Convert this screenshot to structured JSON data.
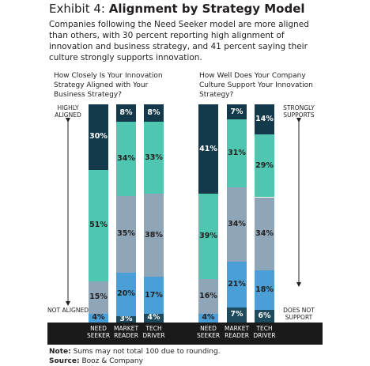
{
  "title_prefix": "Exhibit 4:",
  "title": "Alignment by Strategy Model",
  "subtitle": "Companies following the Need Seeker model are more aligned than others, with 30 percent reporting high alignment of innovation and business strategy, and 41 percent saying their culture strongly supports innovation.",
  "note_label": "Note:",
  "note": "Sums may not total 100 due to rounding.",
  "source_label": "Source:",
  "source": "Booz & Company",
  "chart_data": [
    {
      "type": "stacked-bar",
      "title": "How Closely Is Your Innovation Strategy Aligned with Your Business Strategy?",
      "top_annotation": "HIGHLY ALIGNED",
      "bottom_annotation": "NOT ALIGNED",
      "annotation_side": "left",
      "categories": [
        "NEED SEEKER",
        "MARKET READER",
        "TECH DRIVER"
      ],
      "series": [
        {
          "color": "#1d4a5c",
          "values": [
            null,
            3,
            4
          ],
          "value_labels": [
            null,
            "3%",
            "4%"
          ]
        },
        {
          "color": "#4a9fd6",
          "values": [
            4,
            20,
            17
          ],
          "value_labels": [
            "4%",
            "20%",
            "17%"
          ]
        },
        {
          "color": "#8ea6b8",
          "values": [
            15,
            35,
            38
          ],
          "value_labels": [
            "15%",
            "35%",
            "38%"
          ]
        },
        {
          "color": "#4fc6b0",
          "values": [
            51,
            34,
            33
          ],
          "value_labels": [
            "51%",
            "34%",
            "33%"
          ]
        },
        {
          "color": "#13394b",
          "values": [
            30,
            8,
            8
          ],
          "value_labels": [
            "30%",
            "8%",
            "8%"
          ]
        }
      ]
    },
    {
      "type": "stacked-bar",
      "title": "How Well Does Your Company Culture Support Your Innovation Strategy?",
      "top_annotation": "STRONGLY SUPPORTS",
      "bottom_annotation": "DOES NOT SUPPORT",
      "annotation_side": "right",
      "categories": [
        "NEED SEEKER",
        "MARKET READER",
        "TECH DRIVER"
      ],
      "series": [
        {
          "color": "#1d4a5c",
          "values": [
            null,
            7,
            6
          ],
          "value_labels": [
            null,
            "7%",
            "6%"
          ]
        },
        {
          "color": "#4a9fd6",
          "values": [
            4,
            21,
            18
          ],
          "value_labels": [
            "4%",
            "21%",
            "18%"
          ]
        },
        {
          "color": "#8ea6b8",
          "values": [
            16,
            34,
            34
          ],
          "value_labels": [
            "16%",
            "34%",
            "34%"
          ]
        },
        {
          "color": "#4fc6b0",
          "values": [
            39,
            31,
            29
          ],
          "value_labels": [
            "39%",
            "31%",
            "29%"
          ]
        },
        {
          "color": "#13394b",
          "values": [
            41,
            7,
            14
          ],
          "value_labels": [
            "41%",
            "7%",
            "14%"
          ]
        }
      ]
    }
  ]
}
